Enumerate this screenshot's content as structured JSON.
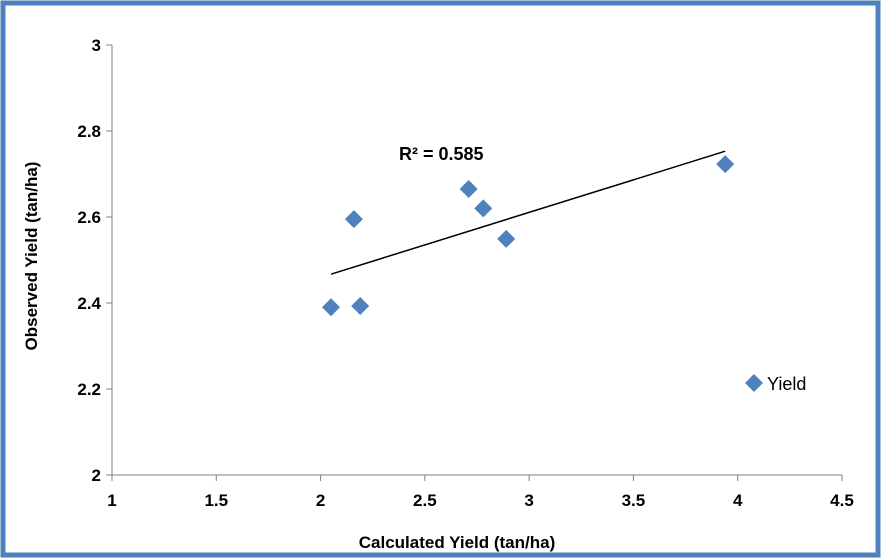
{
  "chart_data": {
    "type": "scatter",
    "title": "",
    "xlabel": "Calculated Yield (tan/ha)",
    "ylabel": "Observed Yield (tan/ha)",
    "xlim": [
      1,
      4.5
    ],
    "ylim": [
      2,
      3
    ],
    "x_ticks": [
      "1",
      "1.5",
      "2",
      "2.5",
      "3",
      "3.5",
      "4",
      "4.5"
    ],
    "y_ticks": [
      "2",
      "2.2",
      "2.4",
      "2.6",
      "2.8",
      "3"
    ],
    "grid": false,
    "legend_position": "right",
    "series": [
      {
        "name": "Yield",
        "color": "#4F81BD",
        "marker": "diamond",
        "points": [
          {
            "x": 2.05,
            "y": 2.39
          },
          {
            "x": 2.16,
            "y": 2.595
          },
          {
            "x": 2.19,
            "y": 2.393
          },
          {
            "x": 2.71,
            "y": 2.665
          },
          {
            "x": 2.78,
            "y": 2.62
          },
          {
            "x": 2.89,
            "y": 2.549
          },
          {
            "x": 3.94,
            "y": 2.723
          }
        ]
      }
    ],
    "trendline": {
      "type": "linear",
      "x_start": 2.05,
      "y_start": 2.467,
      "x_end": 3.94,
      "y_end": 2.753,
      "color": "#000000"
    },
    "annotation": "R² = 0.585",
    "frame_color": "#4F81BD"
  }
}
